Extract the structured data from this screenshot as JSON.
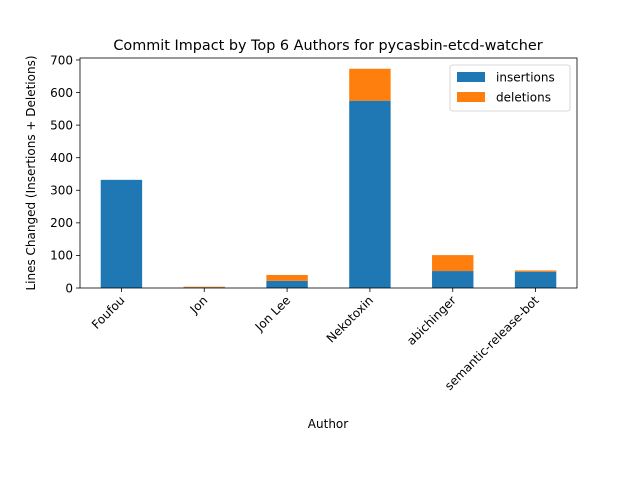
{
  "chart_data": {
    "type": "bar",
    "stacked": true,
    "title": "Commit Impact by Top 6 Authors for pycasbin-etcd-watcher",
    "xlabel": "Author",
    "ylabel": "Lines Changed (Insertions + Deletions)",
    "categories": [
      "Foufou",
      "Jon",
      "Jon Lee",
      "Nekotoxin",
      "abichinger",
      "semantic-release-bot"
    ],
    "series": [
      {
        "name": "insertions",
        "color": "#1f77b4",
        "values": [
          332,
          2,
          22,
          575,
          52,
          50
        ]
      },
      {
        "name": "deletions",
        "color": "#ff7f0e",
        "values": [
          0,
          2,
          18,
          98,
          49,
          4
        ]
      }
    ],
    "ylim": [
      0,
      706
    ],
    "yticks": [
      0,
      100,
      200,
      300,
      400,
      500,
      600,
      700
    ],
    "grid": false,
    "legend_position": "top-right"
  }
}
